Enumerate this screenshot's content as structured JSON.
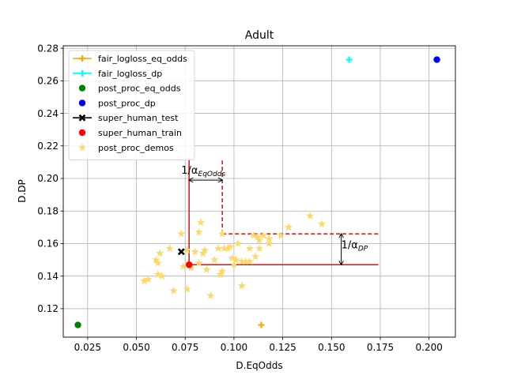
{
  "chart_data": {
    "type": "scatter",
    "title": "Adult",
    "xlabel": "D.EqOdds",
    "ylabel": "D.DP",
    "xlim": [
      0.0125,
      0.2135
    ],
    "ylim": [
      0.1025,
      0.2815
    ],
    "xticks": [
      "0.025",
      "0.050",
      "0.075",
      "0.100",
      "0.125",
      "0.150",
      "0.175",
      "0.200"
    ],
    "yticks": [
      "0.12",
      "0.14",
      "0.16",
      "0.18",
      "0.20",
      "0.22",
      "0.24",
      "0.26",
      "0.28"
    ],
    "grid": true,
    "legend_position": "upper left",
    "series": [
      {
        "name": "fair_logloss_eq_odds",
        "marker": "plus-line",
        "color": "#ffa500",
        "points": [
          [
            0.114,
            0.11
          ]
        ]
      },
      {
        "name": "fair_logloss_dp",
        "marker": "plus-line",
        "color": "#00ffff",
        "points": [
          [
            0.159,
            0.273
          ]
        ]
      },
      {
        "name": "post_proc_eq_odds",
        "marker": "circle",
        "color": "#008000",
        "points": [
          [
            0.02,
            0.11
          ]
        ]
      },
      {
        "name": "post_proc_dp",
        "marker": "circle",
        "color": "#0000ff",
        "points": [
          [
            0.204,
            0.273
          ]
        ]
      },
      {
        "name": "super_human_test",
        "marker": "x-line",
        "color": "#000000",
        "points": [
          [
            0.073,
            0.155
          ]
        ]
      },
      {
        "name": "super_human_train",
        "marker": "circle",
        "color": "#ff0000",
        "points": [
          [
            0.077,
            0.147
          ]
        ]
      },
      {
        "name": "post_proc_demos",
        "marker": "star",
        "color": "#ffd86b",
        "points": [
          [
            0.054,
            0.137
          ],
          [
            0.056,
            0.138
          ],
          [
            0.06,
            0.15
          ],
          [
            0.061,
            0.148
          ],
          [
            0.061,
            0.141
          ],
          [
            0.062,
            0.154
          ],
          [
            0.063,
            0.14
          ],
          [
            0.067,
            0.157
          ],
          [
            0.069,
            0.131
          ],
          [
            0.073,
            0.166
          ],
          [
            0.074,
            0.146
          ],
          [
            0.076,
            0.156
          ],
          [
            0.076,
            0.132
          ],
          [
            0.078,
            0.145
          ],
          [
            0.08,
            0.155
          ],
          [
            0.082,
            0.167
          ],
          [
            0.082,
            0.148
          ],
          [
            0.083,
            0.173
          ],
          [
            0.084,
            0.154
          ],
          [
            0.085,
            0.156
          ],
          [
            0.086,
            0.144
          ],
          [
            0.088,
            0.128
          ],
          [
            0.09,
            0.15
          ],
          [
            0.092,
            0.157
          ],
          [
            0.093,
            0.141
          ],
          [
            0.094,
            0.166
          ],
          [
            0.094,
            0.143
          ],
          [
            0.095,
            0.157
          ],
          [
            0.097,
            0.157
          ],
          [
            0.098,
            0.158
          ],
          [
            0.099,
            0.151
          ],
          [
            0.1,
            0.147
          ],
          [
            0.101,
            0.15
          ],
          [
            0.102,
            0.16
          ],
          [
            0.104,
            0.134
          ],
          [
            0.104,
            0.149
          ],
          [
            0.106,
            0.149
          ],
          [
            0.108,
            0.149
          ],
          [
            0.108,
            0.157
          ],
          [
            0.11,
            0.165
          ],
          [
            0.111,
            0.152
          ],
          [
            0.112,
            0.164
          ],
          [
            0.113,
            0.157
          ],
          [
            0.113,
            0.162
          ],
          [
            0.115,
            0.165
          ],
          [
            0.118,
            0.16
          ],
          [
            0.118,
            0.163
          ],
          [
            0.124,
            0.165
          ],
          [
            0.128,
            0.17
          ],
          [
            0.139,
            0.177
          ],
          [
            0.145,
            0.172
          ]
        ]
      }
    ],
    "reference_lines": [
      {
        "style": "solid",
        "color": "#ff0000",
        "corner": [
          0.077,
          0.147
        ],
        "x_end": 0.174,
        "y_top": 0.213
      },
      {
        "style": "dashed",
        "color": "#ff0000",
        "corner": [
          0.094,
          0.166
        ],
        "x_end": 0.174,
        "y_top": 0.212
      }
    ],
    "annotations": [
      {
        "text_main": "1/α",
        "text_sub": "EqOdds",
        "text_pos": [
          0.073,
          0.203
        ],
        "arrow_from": [
          0.077,
          0.199
        ],
        "arrow_to": [
          0.094,
          0.199
        ],
        "arrow_axis": "x"
      },
      {
        "text_main": "1/α",
        "text_sub": "DP",
        "text_pos": [
          0.155,
          0.157
        ],
        "arrow_from": [
          0.155,
          0.147
        ],
        "arrow_to": [
          0.155,
          0.166
        ],
        "arrow_axis": "y"
      }
    ]
  }
}
